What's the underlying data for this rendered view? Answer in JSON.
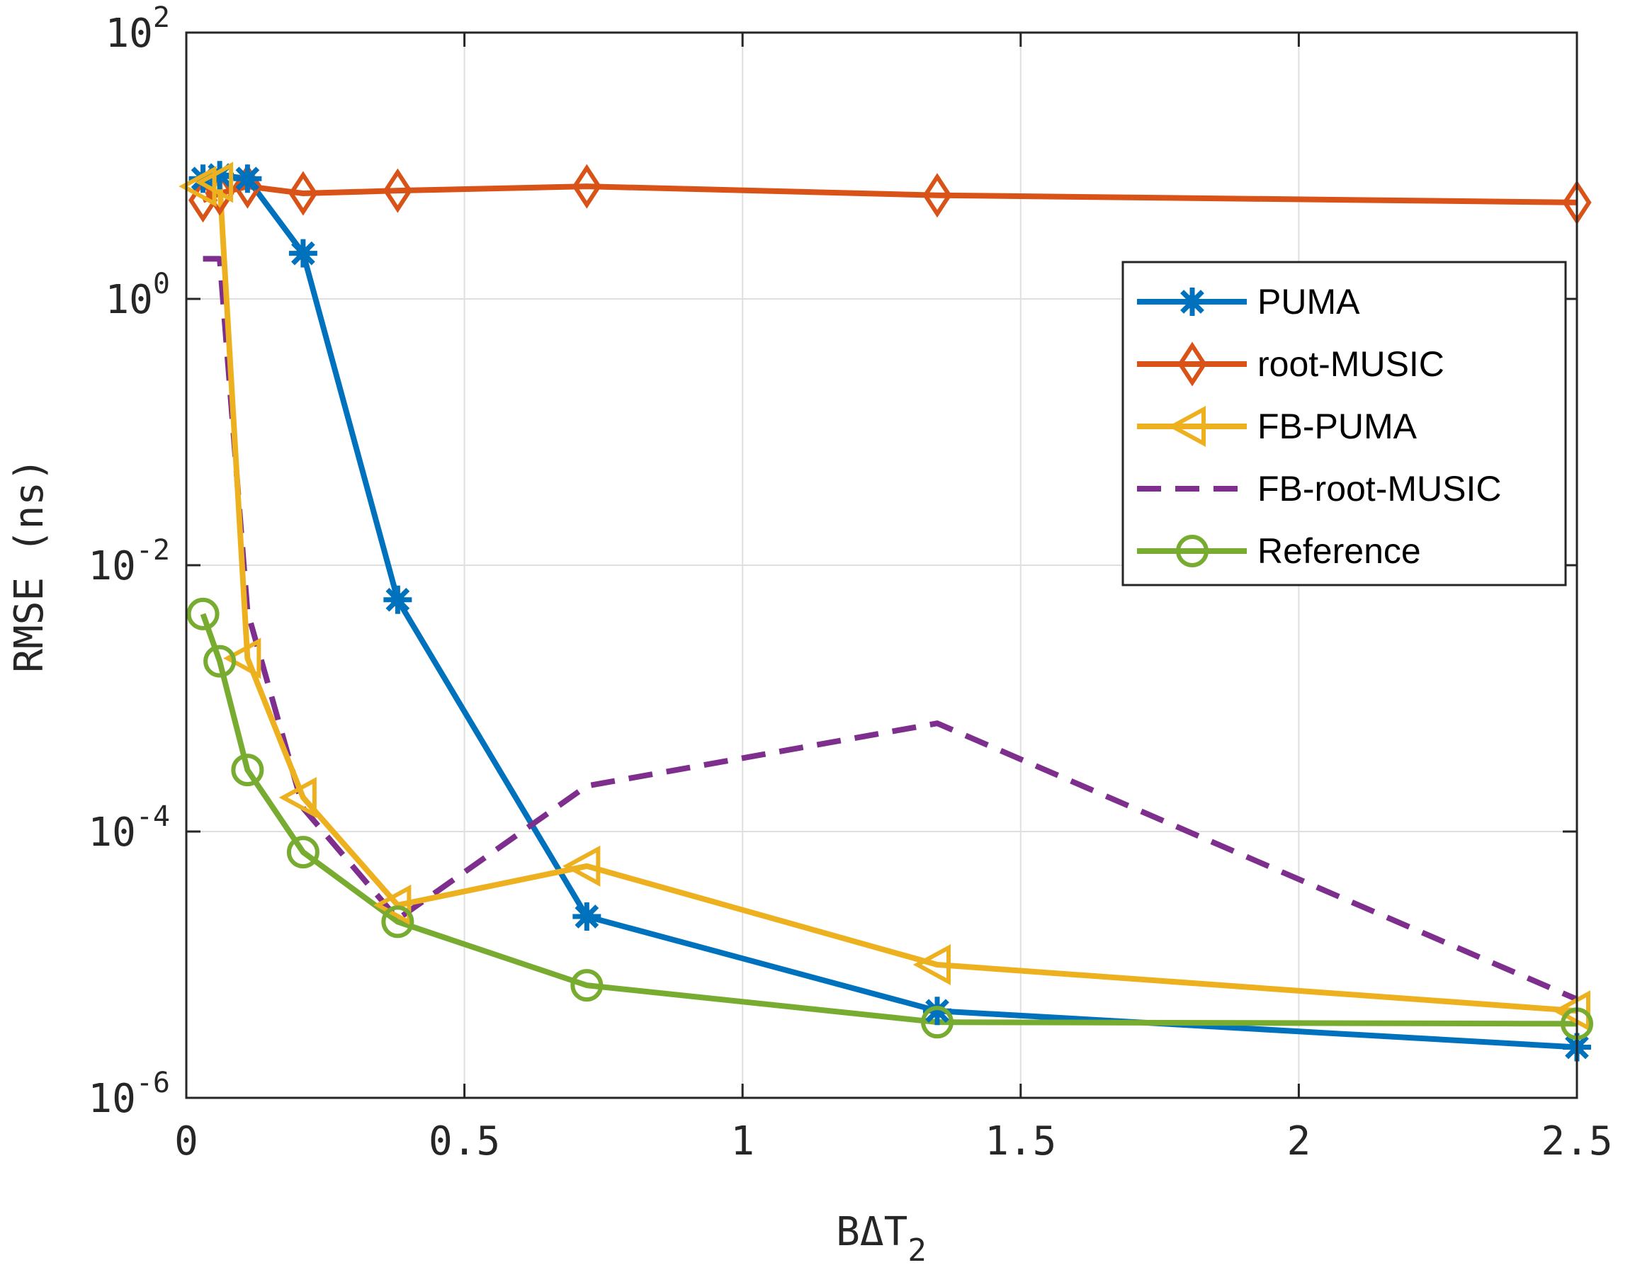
{
  "chart_data": {
    "type": "line",
    "title": "",
    "xlabel": "BΔT",
    "xlabel_sub": "2",
    "ylabel": "RMSE (ns)",
    "xlim": [
      0,
      2.5
    ],
    "ylim": [
      1e-06,
      100
    ],
    "yscale": "log",
    "grid": true,
    "legend_position": "top-right",
    "xticks": [
      0,
      0.5,
      1,
      1.5,
      2,
      2.5
    ],
    "xtick_labels": [
      "0",
      "0.5",
      "1",
      "1.5",
      "2",
      "2.5"
    ],
    "yticks": [
      1e-06,
      0.0001,
      0.01,
      1,
      100
    ],
    "ytick_labels": [
      {
        "base": "10",
        "exp": "-6"
      },
      {
        "base": "10",
        "exp": "-4"
      },
      {
        "base": "10",
        "exp": "-2"
      },
      {
        "base": "10",
        "exp": "0"
      },
      {
        "base": "10",
        "exp": "2"
      }
    ],
    "series": [
      {
        "name": "PUMA",
        "color": "#0072BD",
        "marker": "asterisk",
        "dash": "solid",
        "x": [
          0.03,
          0.06,
          0.11,
          0.21,
          0.38,
          0.72,
          1.35,
          2.5
        ],
        "y": [
          8.0,
          8.5,
          8.0,
          2.2,
          0.0055,
          2.3e-05,
          4.5e-06,
          2.4e-06
        ]
      },
      {
        "name": "root-MUSIC",
        "color": "#D95319",
        "marker": "diamond",
        "dash": "solid",
        "x": [
          0.03,
          0.06,
          0.11,
          0.21,
          0.38,
          0.72,
          1.35,
          2.5
        ],
        "y": [
          5.5,
          6.2,
          7.0,
          6.2,
          6.5,
          7.0,
          6.0,
          5.3
        ]
      },
      {
        "name": "FB-PUMA",
        "color": "#EDB120",
        "marker": "triangle-left",
        "dash": "solid",
        "x": [
          0.03,
          0.06,
          0.11,
          0.21,
          0.38,
          0.72,
          1.35,
          2.5
        ],
        "y": [
          7.0,
          7.5,
          0.002,
          0.00018,
          2.8e-05,
          5.5e-05,
          1e-05,
          4.5e-06
        ]
      },
      {
        "name": "FB-root-MUSIC",
        "color": "#7E2F8E",
        "marker": "none",
        "dash": "dashed",
        "x": [
          0.03,
          0.06,
          0.11,
          0.21,
          0.38,
          0.72,
          1.35,
          2.5
        ],
        "y": [
          2.0,
          2.0,
          0.0045,
          0.00015,
          2.2e-05,
          0.00022,
          0.00065,
          5.5e-06
        ]
      },
      {
        "name": "Reference",
        "color": "#77AC30",
        "marker": "circle",
        "dash": "solid",
        "x": [
          0.03,
          0.06,
          0.11,
          0.21,
          0.38,
          0.72,
          1.35,
          2.5
        ],
        "y": [
          0.0043,
          0.0019,
          0.00029,
          7e-05,
          2.1e-05,
          7e-06,
          3.7e-06,
          3.6e-06
        ]
      }
    ]
  }
}
